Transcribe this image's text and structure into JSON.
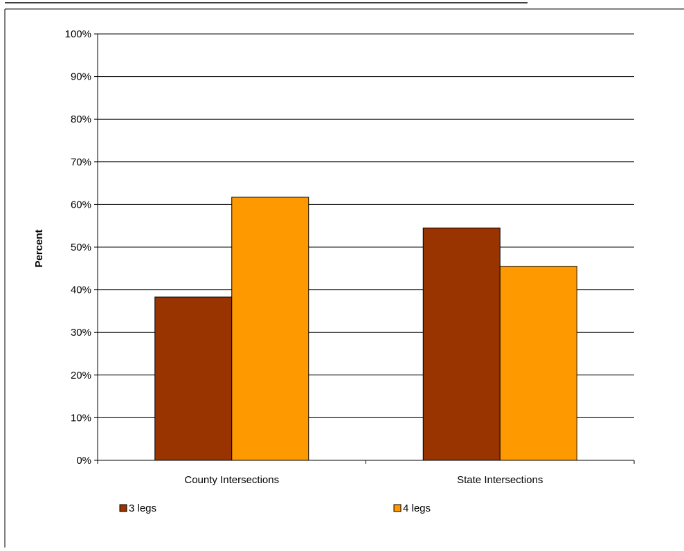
{
  "chart_data": {
    "type": "bar",
    "categories": [
      "County Intersections",
      "State Intersections"
    ],
    "series": [
      {
        "name": "3 legs",
        "values": [
          38.3,
          54.5
        ],
        "color": "#993300"
      },
      {
        "name": "4 legs",
        "values": [
          61.7,
          45.5
        ],
        "color": "#FF9900"
      }
    ],
    "ylabel": "Percent",
    "ylim": [
      0,
      100
    ],
    "yticks": [
      "0%",
      "10%",
      "20%",
      "30%",
      "40%",
      "50%",
      "60%",
      "70%",
      "80%",
      "90%",
      "100%"
    ],
    "grid": true,
    "legend_position": "bottom"
  }
}
